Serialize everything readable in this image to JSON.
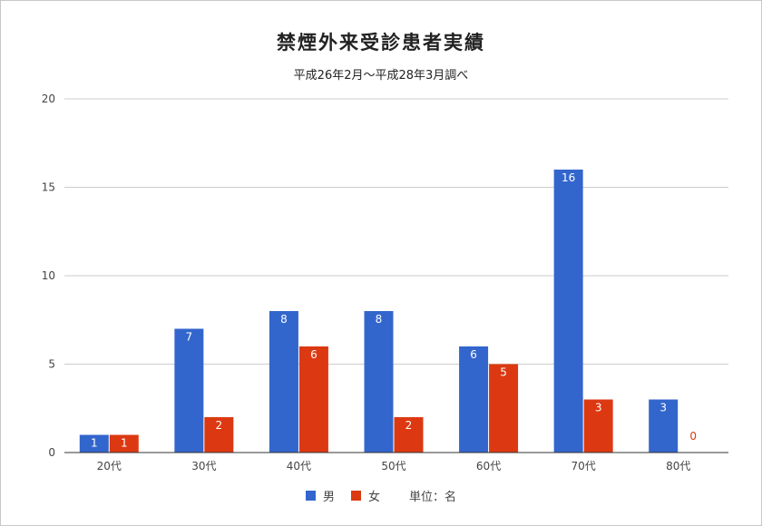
{
  "chart_data": {
    "type": "bar",
    "title": "禁煙外来受診患者実績",
    "subtitle": "平成26年2月～平成28年3月調べ",
    "categories": [
      "20代",
      "30代",
      "40代",
      "50代",
      "60代",
      "70代",
      "80代"
    ],
    "series": [
      {
        "name": "男",
        "color": "#3366cc",
        "values": [
          1,
          7,
          8,
          8,
          6,
          16,
          3
        ]
      },
      {
        "name": "女",
        "color": "#dc3912",
        "values": [
          1,
          2,
          6,
          2,
          5,
          3,
          0
        ]
      }
    ],
    "ylim": [
      0,
      20
    ],
    "yticks": [
      0,
      5,
      10,
      15,
      20
    ],
    "grid": true,
    "legend_position": "bottom",
    "legend_note": "単位：名"
  }
}
